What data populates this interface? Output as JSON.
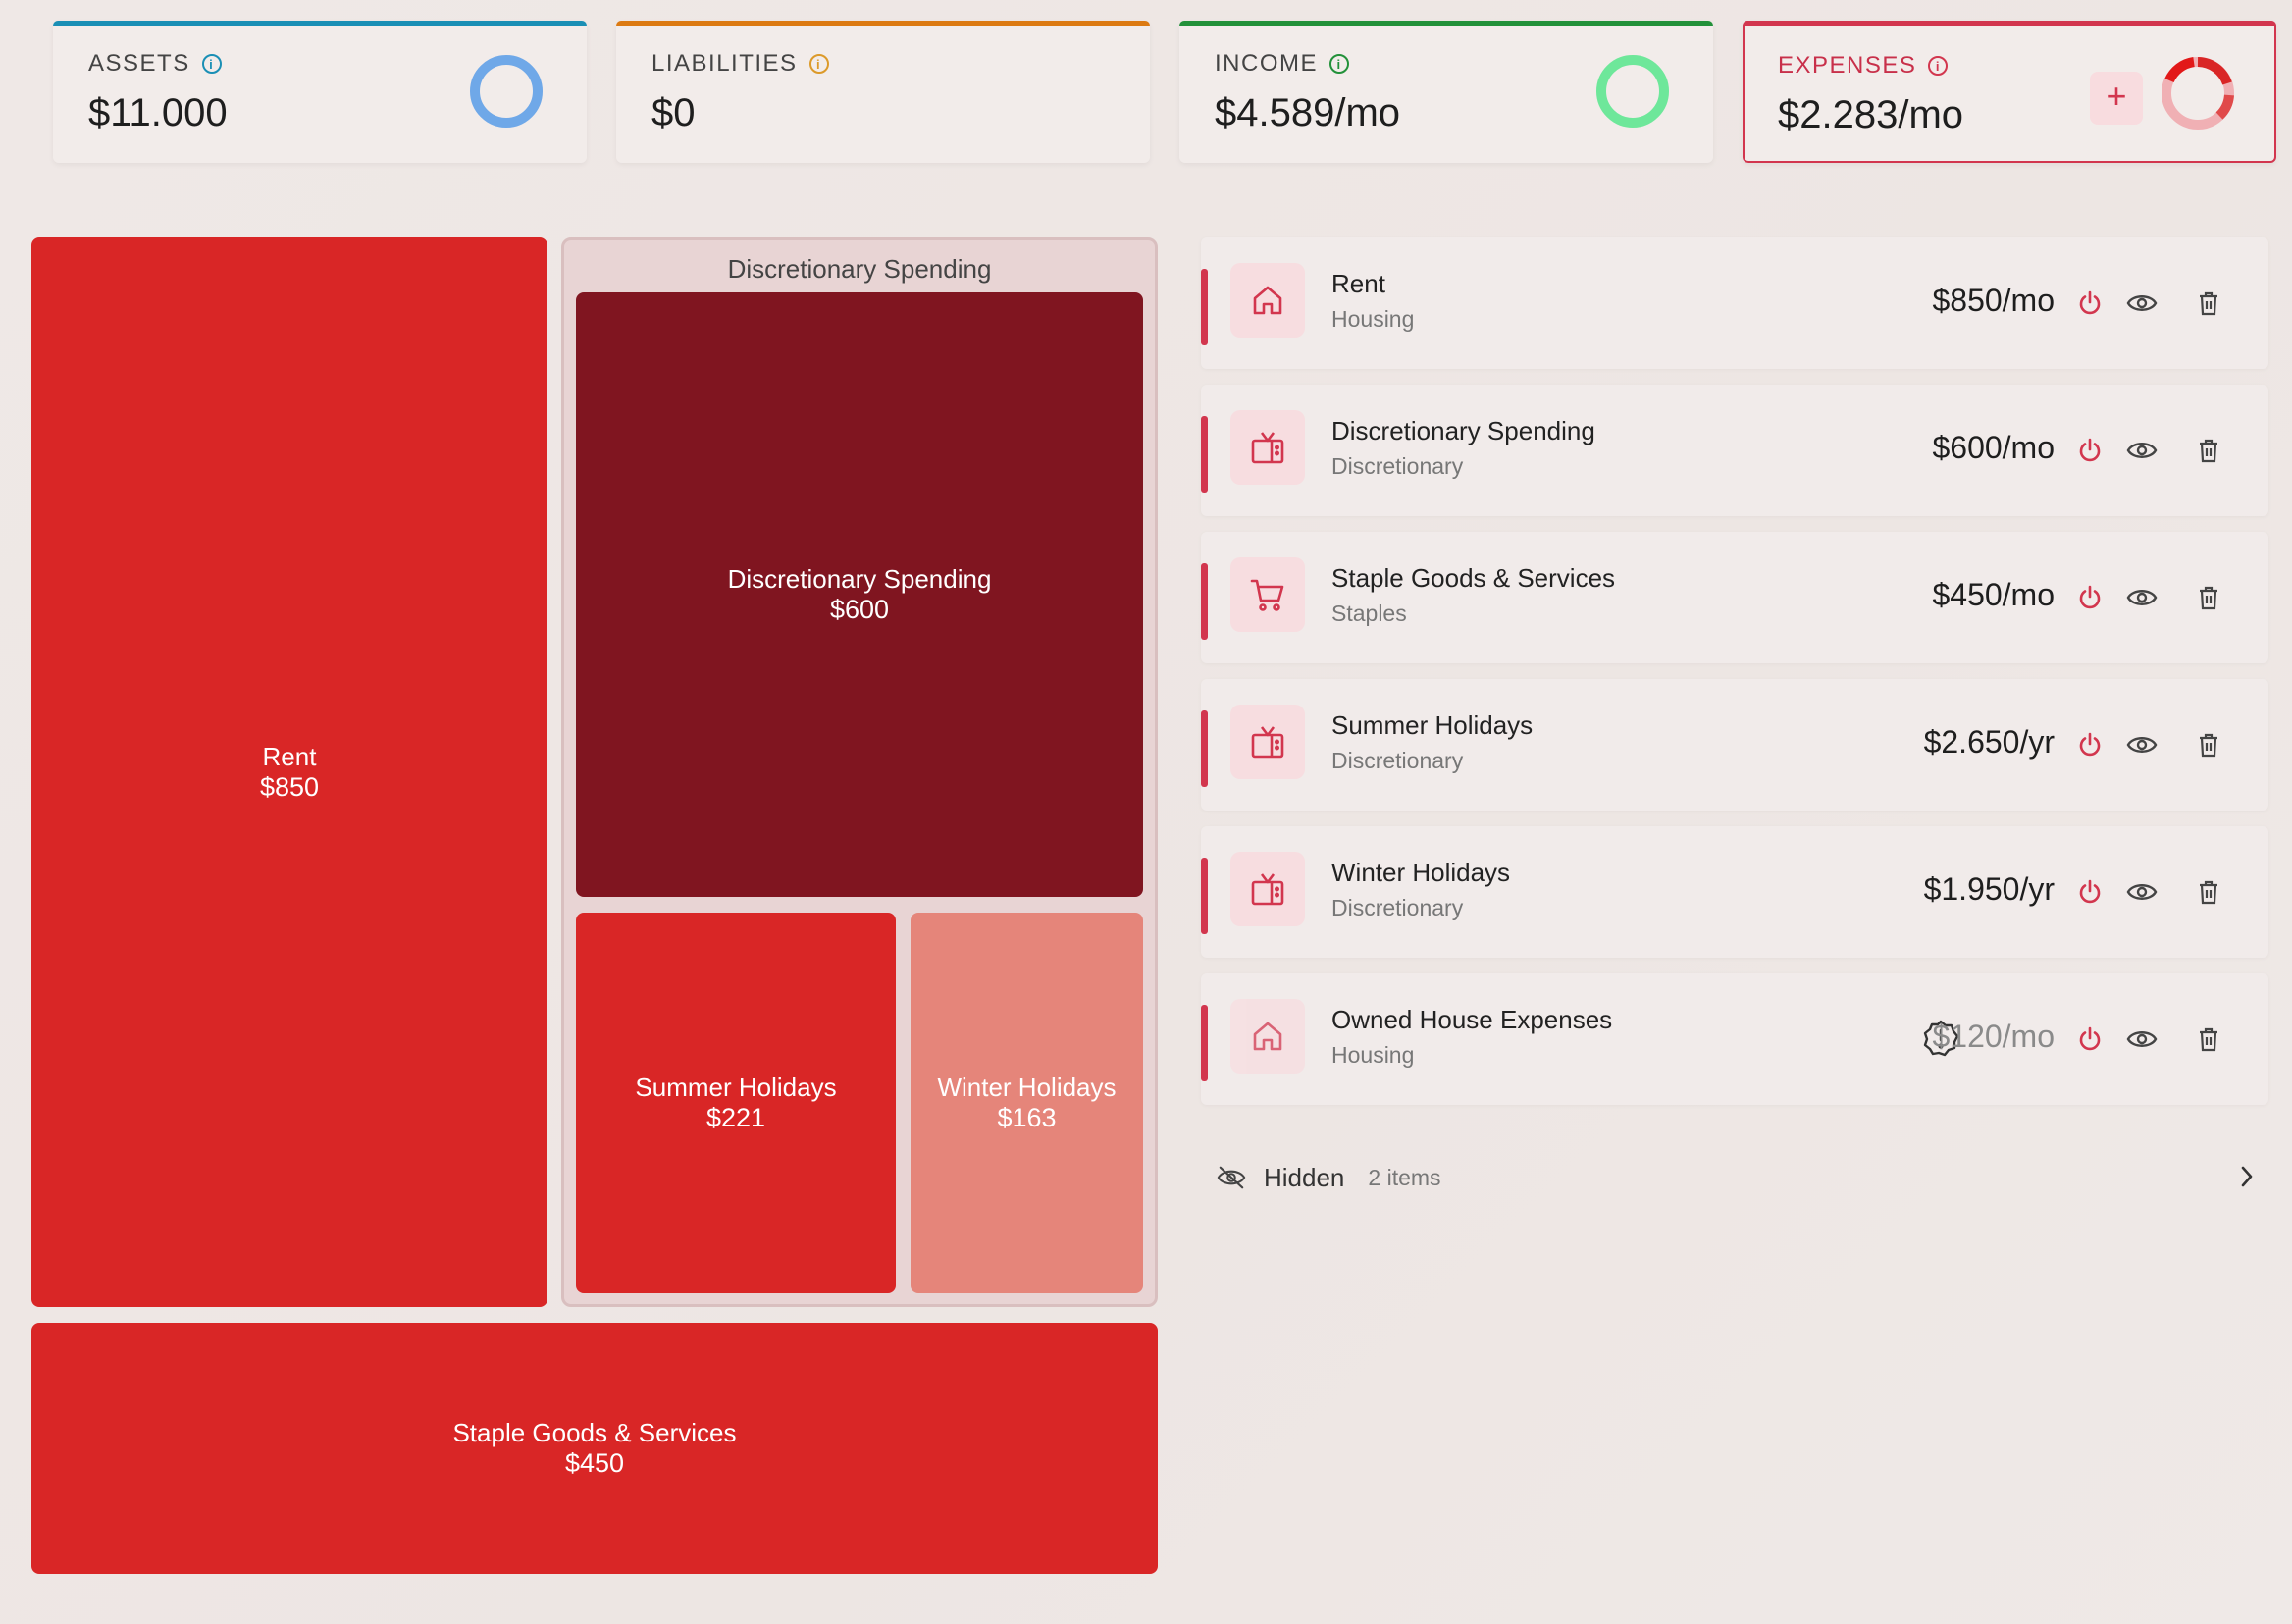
{
  "summary": {
    "assets": {
      "label": "ASSETS",
      "value": "$11.000",
      "color": "#1a8fb5",
      "donut_color": "#6fa8e8"
    },
    "liabilities": {
      "label": "LIABILITIES",
      "value": "$0",
      "color": "#dc7a12"
    },
    "income": {
      "label": "INCOME",
      "value": "$4.589/mo",
      "color": "#23913a",
      "donut_color": "#6ee79a"
    },
    "expenses": {
      "label": "EXPENSES",
      "value": "$2.283/mo",
      "color": "#d2364e",
      "add_label": "+"
    }
  },
  "treemap": {
    "group_title": "Discretionary Spending",
    "tiles": [
      {
        "name": "Rent",
        "value": "$850",
        "color": "#d92626"
      },
      {
        "name": "Discretionary Spending",
        "value": "$600",
        "color": "#801520"
      },
      {
        "name": "Summer Holidays",
        "value": "$221",
        "color": "#d92626"
      },
      {
        "name": "Winter Holidays",
        "value": "$163",
        "color": "#e5857a"
      },
      {
        "name": "Staple Goods & Services",
        "value": "$450",
        "color": "#d92626"
      }
    ]
  },
  "expenses": [
    {
      "name": "Rent",
      "category": "Housing",
      "amount": "$850/mo",
      "icon": "house-icon"
    },
    {
      "name": "Discretionary Spending",
      "category": "Discretionary",
      "amount": "$600/mo",
      "icon": "tv-icon"
    },
    {
      "name": "Staple Goods & Services",
      "category": "Staples",
      "amount": "$450/mo",
      "icon": "cart-icon"
    },
    {
      "name": "Summer Holidays",
      "category": "Discretionary",
      "amount": "$2.650/yr",
      "icon": "tv-icon"
    },
    {
      "name": "Winter Holidays",
      "category": "Discretionary",
      "amount": "$1.950/yr",
      "icon": "tv-icon"
    },
    {
      "name": "Owned House Expenses",
      "category": "Housing",
      "amount": "$120/mo",
      "icon": "house-icon",
      "warning": true
    }
  ],
  "hidden": {
    "label": "Hidden",
    "count": "2 items"
  }
}
